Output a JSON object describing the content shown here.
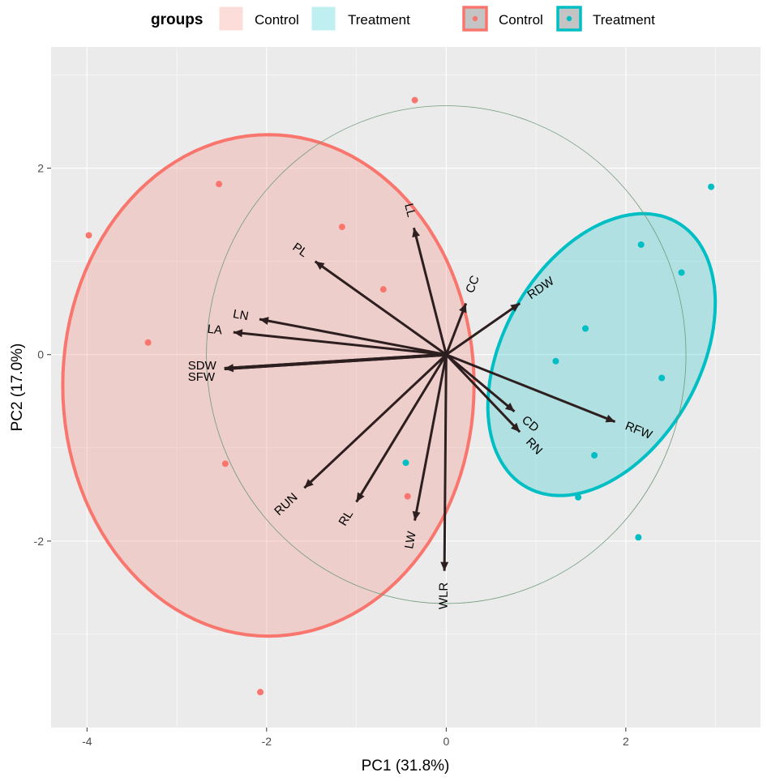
{
  "chart_data": {
    "type": "scatter",
    "subtype": "pca-biplot",
    "xlabel": "PC1 (31.8%)",
    "ylabel": "PC2 (17.0%)",
    "xlim": [
      -4.4,
      3.5
    ],
    "ylim": [
      -4.0,
      3.3
    ],
    "x_ticks": [
      -4,
      -2,
      0,
      2
    ],
    "y_ticks": [
      -2,
      0,
      2
    ],
    "grid": true,
    "legend": {
      "title": "groups",
      "position": "top",
      "fill_entries": [
        "Control",
        "Treatment"
      ],
      "point_entries": [
        "Control",
        "Treatment"
      ]
    },
    "groups": [
      {
        "name": "Control",
        "color": "#F8766D",
        "fill": "#F8766D",
        "points": [
          {
            "x": -3.98,
            "y": 1.28
          },
          {
            "x": -3.32,
            "y": 0.13
          },
          {
            "x": -2.53,
            "y": 1.83
          },
          {
            "x": -2.46,
            "y": -1.17
          },
          {
            "x": -1.16,
            "y": 1.37
          },
          {
            "x": -0.7,
            "y": 0.7
          },
          {
            "x": -0.35,
            "y": 2.73
          },
          {
            "x": -0.43,
            "y": -1.52
          },
          {
            "x": -2.07,
            "y": -3.62
          }
        ],
        "ellipse": {
          "cx": -1.98,
          "cy": -0.33,
          "rx": 2.29,
          "ry": 2.69,
          "angle": 0
        }
      },
      {
        "name": "Treatment",
        "color": "#00BFC4",
        "fill": "#00BFC4",
        "points": [
          {
            "x": 2.95,
            "y": 1.8
          },
          {
            "x": 2.17,
            "y": 1.18
          },
          {
            "x": 2.62,
            "y": 0.88
          },
          {
            "x": 1.55,
            "y": 0.28
          },
          {
            "x": 1.22,
            "y": -0.07
          },
          {
            "x": 2.4,
            "y": -0.25
          },
          {
            "x": 1.65,
            "y": -1.08
          },
          {
            "x": 1.47,
            "y": -1.53
          },
          {
            "x": 2.14,
            "y": -1.96
          },
          {
            "x": -0.45,
            "y": -1.16
          }
        ],
        "ellipse": {
          "cx": 1.73,
          "cy": 0.0,
          "rx": 1.65,
          "ry": 1.08,
          "angle": 58
        }
      }
    ],
    "correlation_circle": {
      "cx": 0,
      "cy": 0,
      "r": 2.67
    },
    "loadings": [
      {
        "name": "LL",
        "x": -0.36,
        "y": 1.36
      },
      {
        "name": "PL",
        "x": -1.46,
        "y": 1.0
      },
      {
        "name": "CC",
        "x": 0.22,
        "y": 0.55
      },
      {
        "name": "RDW",
        "x": 0.82,
        "y": 0.55
      },
      {
        "name": "LN",
        "x": -2.08,
        "y": 0.38
      },
      {
        "name": "LA",
        "x": -2.37,
        "y": 0.24
      },
      {
        "name": "SDW",
        "x": -2.47,
        "y": -0.15
      },
      {
        "name": "SFW",
        "x": -2.47,
        "y": -0.15
      },
      {
        "name": "CD",
        "x": 0.76,
        "y": -0.61
      },
      {
        "name": "RFW",
        "x": 1.88,
        "y": -0.72
      },
      {
        "name": "RN",
        "x": 0.82,
        "y": -0.83
      },
      {
        "name": "RUN",
        "x": -1.58,
        "y": -1.43
      },
      {
        "name": "RL",
        "x": -1.0,
        "y": -1.58
      },
      {
        "name": "LW",
        "x": -0.35,
        "y": -1.78
      },
      {
        "name": "WLR",
        "x": -0.02,
        "y": -2.32
      }
    ]
  }
}
